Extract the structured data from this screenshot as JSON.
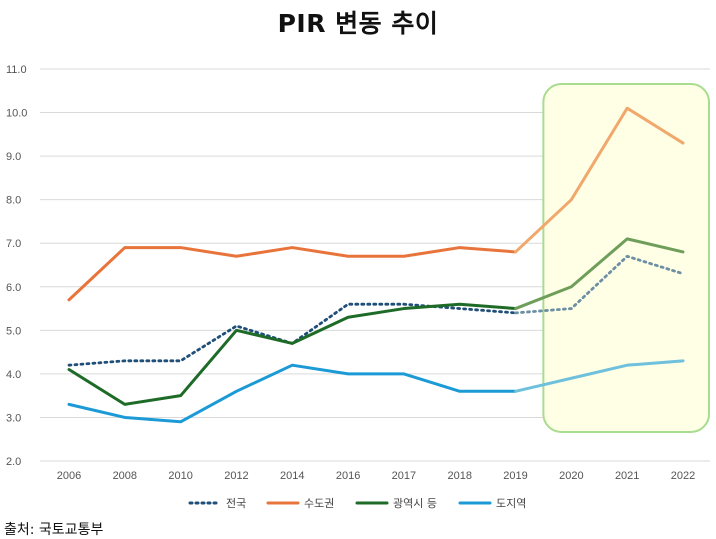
{
  "title": "PIR 변동 추이",
  "source": "출처: 국토교통부",
  "chart_data": {
    "type": "line",
    "title": "PIR 변동 추이",
    "categories": [
      "2006",
      "2008",
      "2010",
      "2012",
      "2014",
      "2016",
      "2017",
      "2018",
      "2019",
      "2020",
      "2021",
      "2022"
    ],
    "ylim": [
      2.0,
      11.0
    ],
    "yticks": [
      "2.0",
      "3.0",
      "4.0",
      "5.0",
      "6.0",
      "7.0",
      "8.0",
      "9.0",
      "10.0",
      "11.0"
    ],
    "grid": true,
    "legend_position": "bottom",
    "highlight": {
      "from": "2020",
      "to": "2022",
      "fill": "#ffffe6",
      "stroke": "#a8dc8f"
    },
    "series": [
      {
        "name": "전국",
        "style": "dotted",
        "color": "#1f4e79",
        "faded_color": "#6e8fa3",
        "values": [
          4.2,
          4.3,
          4.3,
          5.1,
          4.7,
          5.6,
          5.6,
          5.5,
          5.4,
          5.5,
          6.7,
          6.3
        ]
      },
      {
        "name": "수도권",
        "style": "solid",
        "color": "#e8743b",
        "faded_color": "#f0a86c",
        "values": [
          5.7,
          6.9,
          6.9,
          6.7,
          6.9,
          6.7,
          6.7,
          6.9,
          6.8,
          8.0,
          10.1,
          9.3
        ]
      },
      {
        "name": "광역시 등",
        "style": "solid",
        "color": "#1e6b28",
        "faded_color": "#6e9e5a",
        "values": [
          4.1,
          3.3,
          3.5,
          5.0,
          4.7,
          5.3,
          5.5,
          5.6,
          5.5,
          6.0,
          7.1,
          6.8
        ]
      },
      {
        "name": "도지역",
        "style": "solid",
        "color": "#1b9ad6",
        "faded_color": "#6ec0dc",
        "values": [
          3.3,
          3.0,
          2.9,
          3.6,
          4.2,
          4.0,
          4.0,
          3.6,
          3.6,
          3.9,
          4.2,
          4.3
        ]
      }
    ]
  }
}
